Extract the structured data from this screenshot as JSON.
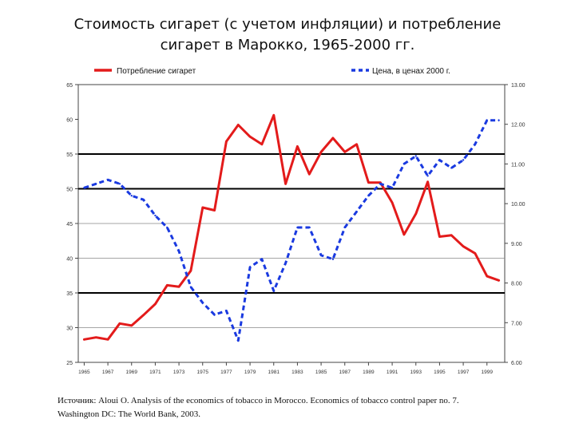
{
  "title": {
    "line1": "Стоимость сигарет (с учетом инфляции) и потребление",
    "line2": "сигарет в Марокко, 1965-2000 гг."
  },
  "source": {
    "line1": "Источник: Aloui O. Analysis of the economics of tobacco in Morocco. Economics of tobacco control paper no. 7.",
    "line2": "Washington DC: The World Bank, 2003."
  },
  "chart_data": {
    "type": "line",
    "legend_position": "top",
    "x": [
      1965,
      1966,
      1967,
      1968,
      1969,
      1970,
      1971,
      1972,
      1973,
      1974,
      1975,
      1976,
      1977,
      1978,
      1979,
      1980,
      1981,
      1982,
      1983,
      1984,
      1985,
      1986,
      1987,
      1988,
      1989,
      1990,
      1991,
      1992,
      1993,
      1994,
      1995,
      1996,
      1997,
      1998,
      1999,
      2000
    ],
    "x_tick_labels": [
      "1965",
      "1967",
      "1969",
      "1971",
      "1973",
      "1975",
      "1977",
      "1979",
      "1981",
      "1983",
      "1985",
      "1987",
      "1989",
      "1991",
      "1993",
      "1995",
      "1997",
      "1999"
    ],
    "x_tick_values": [
      1965,
      1967,
      1969,
      1971,
      1973,
      1975,
      1977,
      1979,
      1981,
      1983,
      1985,
      1987,
      1989,
      1991,
      1993,
      1995,
      1997,
      1999
    ],
    "y_left": {
      "lim": [
        25,
        65
      ],
      "ticks": [
        "25",
        "30",
        "35",
        "40",
        "45",
        "50",
        "55",
        "60",
        "65"
      ]
    },
    "y_right": {
      "lim": [
        6.0,
        13.0
      ],
      "ticks": [
        "6.00",
        "7.00",
        "8.00",
        "9.00",
        "10.00",
        "11.00",
        "12.00",
        "13.00"
      ]
    },
    "bold_gridlines_left": [
      35,
      50,
      55
    ],
    "thin_gridlines_left": [
      30,
      40,
      45
    ],
    "series": [
      {
        "name": "Потребление сигарет",
        "axis": "left",
        "color": "#e31b1b",
        "style": "solid",
        "values": [
          28.3,
          28.6,
          28.3,
          30.6,
          30.3,
          31.8,
          33.4,
          36.1,
          35.9,
          38.2,
          47.3,
          46.9,
          56.8,
          59.2,
          57.5,
          56.4,
          60.6,
          50.7,
          56.1,
          52.1,
          55.3,
          57.3,
          55.3,
          56.4,
          50.9,
          50.9,
          48.0,
          43.4,
          46.4,
          51.0,
          43.1,
          43.3,
          41.7,
          40.7,
          37.4,
          36.8
        ]
      },
      {
        "name": "Цена, в ценах 2000 г.",
        "axis": "right",
        "color": "#1a3ae0",
        "style": "dashed",
        "values": [
          10.4,
          10.5,
          10.6,
          10.5,
          10.2,
          10.1,
          9.7,
          9.4,
          8.8,
          7.9,
          7.5,
          7.2,
          7.3,
          6.55,
          8.4,
          8.6,
          7.8,
          8.5,
          9.4,
          9.4,
          8.7,
          8.6,
          9.4,
          9.8,
          10.2,
          10.5,
          10.4,
          11.0,
          11.2,
          10.7,
          11.1,
          10.9,
          11.1,
          11.5,
          12.1,
          12.1
        ]
      }
    ]
  }
}
